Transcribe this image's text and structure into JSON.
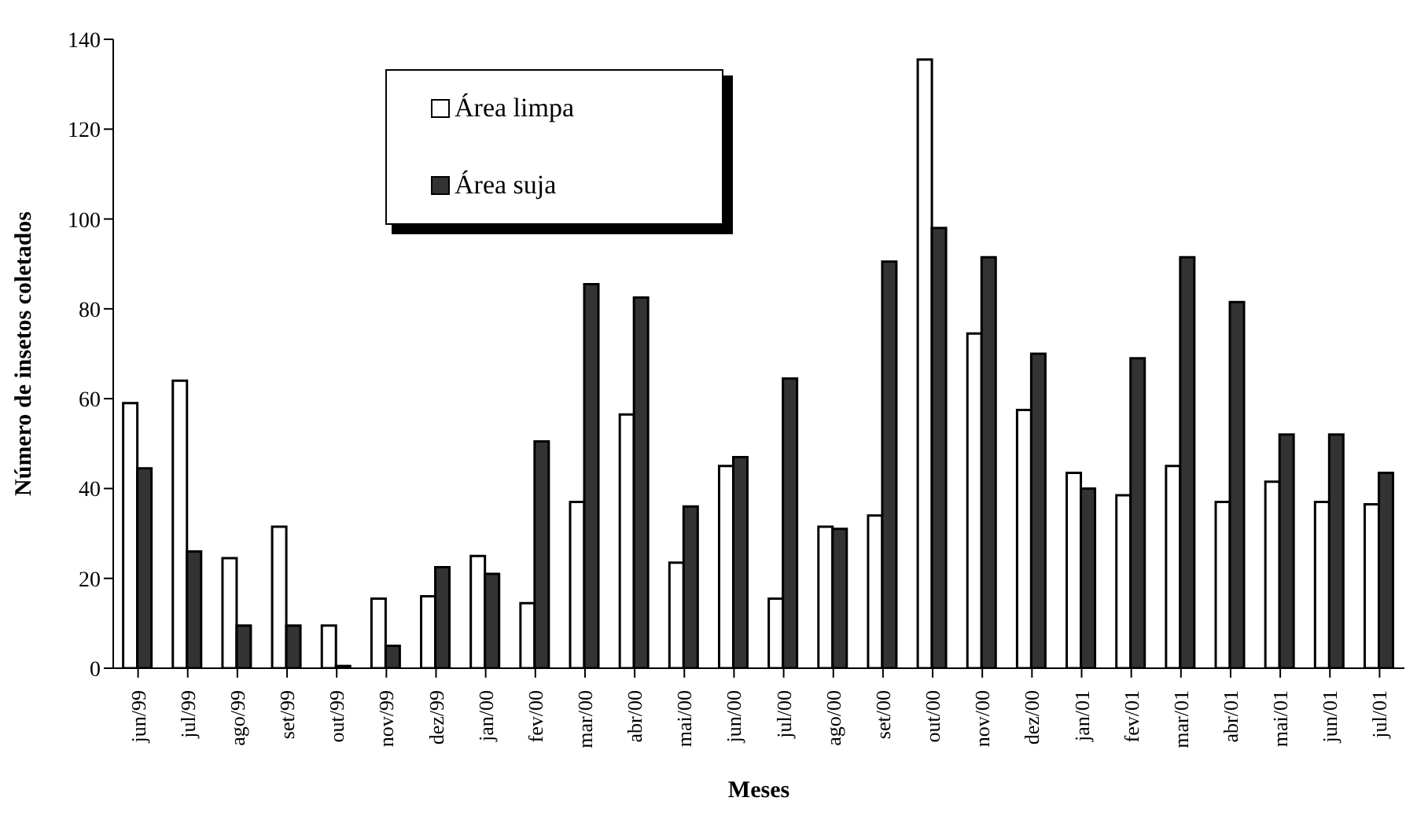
{
  "chart_data": {
    "type": "bar",
    "xlabel": "Meses",
    "ylabel": "Número de insetos coletados",
    "categories": [
      "jun/99",
      "jul/99",
      "ago/99",
      "set/99",
      "out/99",
      "nov/99",
      "dez/99",
      "jan/00",
      "fev/00",
      "mar/00",
      "abr/00",
      "mai/00",
      "jun/00",
      "jul/00",
      "ago/00",
      "set/00",
      "out/00",
      "nov/00",
      "dez/00",
      "jan/01",
      "fev/01",
      "mar/01",
      "abr/01",
      "mai/01",
      "jun/01",
      "jul/01"
    ],
    "series": [
      {
        "name": "Área limpa",
        "color": "#ffffff",
        "values": [
          59,
          64,
          24.5,
          31.5,
          9.5,
          15.5,
          16,
          25,
          14.5,
          37,
          56.5,
          23.5,
          45,
          15.5,
          31.5,
          34,
          135.5,
          74.5,
          57.5,
          43.5,
          38.5,
          45,
          37,
          41.5,
          37,
          36.5
        ]
      },
      {
        "name": "Área suja",
        "color": "#333333",
        "values": [
          44.5,
          26,
          9.5,
          9.5,
          0.5,
          5,
          22.5,
          21,
          50.5,
          85.5,
          82.5,
          36,
          47,
          64.5,
          31,
          90.5,
          98,
          91.5,
          70,
          40,
          69,
          91.5,
          81.5,
          52,
          52,
          43.5
        ]
      }
    ],
    "ylim": [
      0,
      140
    ],
    "yticks": [
      0,
      20,
      40,
      60,
      80,
      100,
      120,
      140
    ],
    "grid": false,
    "legend": "top left"
  }
}
